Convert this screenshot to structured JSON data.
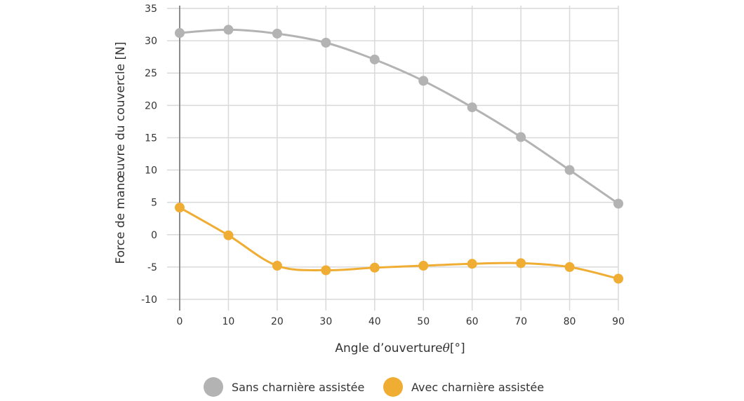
{
  "chart_data": {
    "type": "line",
    "x": [
      0,
      10,
      20,
      30,
      40,
      50,
      60,
      70,
      80,
      90
    ],
    "series": [
      {
        "name": "Sans charnière assistée",
        "color": "#b3b3b3",
        "values": [
          31.2,
          31.7,
          31.1,
          29.7,
          27.1,
          23.8,
          19.7,
          15.1,
          10.0,
          4.8
        ]
      },
      {
        "name": "Avec charnière assistée",
        "color": "#f0ad33",
        "values": [
          4.2,
          -0.1,
          -4.8,
          -5.5,
          -5.1,
          -4.8,
          -4.5,
          -4.4,
          -5.0,
          -6.8
        ]
      }
    ],
    "xlabel": "Angle d’ouverture",
    "xlabel_symbol": "θ",
    "xlabel_unit": "[°]",
    "ylabel": "Force de manœuvre du couvercle [N]",
    "xlim": [
      0,
      90
    ],
    "ylim": [
      -10,
      35
    ],
    "xticks": [
      0,
      10,
      20,
      30,
      40,
      50,
      60,
      70,
      80,
      90
    ],
    "yticks": [
      -10,
      -5,
      0,
      5,
      10,
      15,
      20,
      25,
      30,
      35
    ],
    "grid": true,
    "legend_position": "bottom"
  }
}
